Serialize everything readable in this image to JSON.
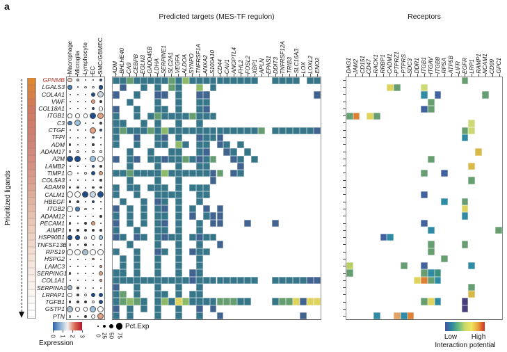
{
  "panel_label": "a",
  "titles": {
    "targets": "Predicted targets (MES-TF regulon)",
    "receptors": "Receptors"
  },
  "left_axis": {
    "label": "Prioritized ligands"
  },
  "ligands": [
    "GPNMB",
    "LGALS3",
    "COL4A1",
    "VWF",
    "COL18A1",
    "ITGB1",
    "C3",
    "CTGF",
    "TFPI",
    "ADM",
    "ADAM17",
    "A2M",
    "LAMB2",
    "TIMP1",
    "COL5A3",
    "ADAM9",
    "CALM1",
    "HBEGF",
    "ITGB2",
    "ADAM12",
    "PECAM1",
    "AIMP1",
    "HSP90B1",
    "TNFSF13B",
    "RPS19",
    "HSPG2",
    "LAMC3",
    "SERPING1",
    "COL1A1",
    "SERPINA1",
    "LRPAP1",
    "TGFB1",
    "GSTP1",
    "PTN"
  ],
  "ligand_highlight": {
    "gene": "GPNMB",
    "color": "#c0392b"
  },
  "ligand_bar": {
    "stops": [
      "#df862f",
      "#d1795f",
      "#d08175",
      "#d79384",
      "#e0b09d",
      "#ebcaba",
      "#f4e1d6",
      "#fbf2ec",
      "#ffffff"
    ]
  },
  "heat_palette": {
    ".": null,
    "t": "#377689",
    "T": "#40648f",
    "b": "#2f8ba3",
    "n": "#41629e",
    "m": "#3e8e7e",
    "g": "#669e72",
    "G": "#8cba68",
    "L": "#b9cf66",
    "l": "#cdd977",
    "Y": "#ddd35e",
    "y": "#d9b84a",
    "o": "#e2a364",
    "O": "#dd7f35",
    "r": "#cc2d21",
    "P": "#4a3f7d"
  },
  "dot_palette": {
    "k": "#3a3a3a",
    "w": "#ffffff",
    "n": "#1f4e8c",
    "b": "#4d7fb5",
    "l": "#9cc0d8",
    "p": "#c9d5e0",
    "s": "#e2a183",
    "P": "#eecdbd",
    "g": "#a9bdcb"
  },
  "legends": {
    "expression": {
      "label": "Expression",
      "ticks": [
        "0",
        "1",
        "2",
        "3"
      ],
      "gradient": [
        "#2d5fa8",
        "#88b0d2",
        "#f2f0ee",
        "#d96b52",
        "#b2182b"
      ]
    },
    "pct": {
      "label": "Pct.Exp",
      "ticks": [
        "0",
        "25",
        "50",
        "75"
      ]
    },
    "interaction": {
      "label": "Interaction potential",
      "low": "Low",
      "high": "High",
      "gradient": [
        "#4350a0",
        "#2d87a2",
        "#66b87f",
        "#c8d96a",
        "#f0e55c",
        "#eaa03c",
        "#cc2d21"
      ]
    }
  },
  "chart_data": [
    {
      "type": "scatter",
      "subtype": "dotplot",
      "title": "Ligand expression per cell type",
      "rows_ref": "ligands",
      "cols": [
        "Macrophage",
        "Microglia",
        "Lymphocyte",
        "EC",
        "SMC/GBMEC"
      ],
      "encoding": {
        "cell_format": "sizeDigit+colorChar",
        "size_pct": {
          "0": 0,
          "1": 25,
          "2": 50,
          "3": 75
        },
        "color_scale": "Expression 0-3, blue-white-red; see dot_palette"
      },
      "cells": [
        [
          "2P",
          "1g",
          "0k",
          "0k",
          "1n"
        ],
        [
          "2b",
          "0k",
          "1w",
          "1w",
          "2n"
        ],
        [
          "0k",
          "0k",
          "0k",
          "2n",
          "3p"
        ],
        [
          "0k",
          "0k",
          "0k",
          "2s",
          "1k"
        ],
        [
          "0k",
          "0k",
          "0k",
          "1n",
          "2w"
        ],
        [
          "2w",
          "2w",
          "2w",
          "3n",
          "3s"
        ],
        [
          "2b",
          "3l",
          "0k",
          "0k",
          "1k"
        ],
        [
          "0k",
          "0k",
          "0k",
          "3s",
          "1n"
        ],
        [
          "0k",
          "0k",
          "0k",
          "1n",
          "0k"
        ],
        [
          "1k",
          "0k",
          "0k",
          "1k",
          "0k"
        ],
        [
          "1w",
          "1w",
          "0k",
          "1w",
          "1w"
        ],
        [
          "3n",
          "3n",
          "0k",
          "3l",
          "3w"
        ],
        [
          "0k",
          "0k",
          "0k",
          "1n",
          "1k"
        ],
        [
          "2w",
          "0k",
          "1w",
          "2n",
          "2s"
        ],
        [
          "0k",
          "0k",
          "0k",
          "0k",
          "1k"
        ],
        [
          "1k",
          "1k",
          "0k",
          "1k",
          "1k"
        ],
        [
          "3w",
          "3w",
          "3n",
          "3p",
          "3n"
        ],
        [
          "1k",
          "1k",
          "0k",
          "1n",
          "0k"
        ],
        [
          "3w",
          "2b",
          "1w",
          "0k",
          "0k"
        ],
        [
          "0k",
          "0k",
          "0k",
          "0k",
          "1k"
        ],
        [
          "1k",
          "0k",
          "1k",
          "2s",
          "0k"
        ],
        [
          "1k",
          "1k",
          "1k",
          "1k",
          "1k"
        ],
        [
          "2n",
          "2n",
          "1w",
          "2w",
          "2l"
        ],
        [
          "1w",
          "0k",
          "1k",
          "0k",
          "0k"
        ],
        [
          "3w",
          "3w",
          "3g",
          "3w",
          "3w"
        ],
        [
          "0k",
          "0k",
          "0k",
          "1s",
          "0k"
        ],
        [
          "0k",
          "0k",
          "0k",
          "0k",
          "1s"
        ],
        [
          "1k",
          "0k",
          "0k",
          "0k",
          "2s"
        ],
        [
          "0k",
          "0k",
          "0k",
          "0k",
          "1s"
        ],
        [
          "2g",
          "1k",
          "0k",
          "0k",
          "0k"
        ],
        [
          "2w",
          "1k",
          "1w",
          "2n",
          "2n"
        ],
        [
          "1k",
          "1k",
          "1k",
          "1w",
          "2n"
        ],
        [
          "3g",
          "2w",
          "2w",
          "3l",
          "3w"
        ],
        [
          "1w",
          "0k",
          "1k",
          "2w",
          "3s"
        ]
      ]
    },
    {
      "type": "heatmap",
      "title": "Predicted targets (MES-TF regulon)",
      "rows_ref": "ligands",
      "cols": [
        "ADM",
        "BHLHE40",
        "CA9",
        "CEBPB",
        "EGLN3",
        "GADD45B",
        "LDHA",
        "SERPINE1",
        "SLC2A1",
        "VEGFA",
        "ALDOA",
        "SYNPO",
        "TNFRSF1A",
        "ANXA2",
        "S100A10",
        "CD44",
        "CAV1",
        "ANGPTL4",
        "FHL2",
        "FOSL2",
        "XBP1",
        "APLN",
        "EPAS1",
        "DDIT3",
        "TNFRSF12A",
        "TRIB3",
        "SLC16A3",
        "LOX",
        "LOXL2",
        "ENO2"
      ],
      "palette_ref": "heat_palette",
      "legend": "Interaction potential: Low (blue) to High (red); . = none",
      "cells": [
        "ttgtttttgtGtttttttttt..tttt.tt",
        ".T..t.t.gt..G.t...............",
        "T..t..TT.t..TT...............T",
        "..t...t..t..tt................",
        "T..t..tt.t..tT................",
        "t..t.tgttttgttt...............",
        "tt..t.t..t..t.................",
        "tgtttgtGtttttttttttttg.ttttttT",
        "t..T..tT.t..TttT..............",
        "t..t..tt.Gt.tt.Tt.t...........",
        "..t..t..tt..tT..Tt.t..........",
        "T.tT.ttTttgtTtg..Tt.t.........",
        "..t...t..t..tt....T...........",
        "ttgttttGttttttTg.Tt...........",
        "..t...t..t....T...............",
        "t.tt.ttt.t.ttt................",
        "t..t..tttt..tt................",
        ".t..t.Tt.t..t.................",
        "T.t.t.tT.t.t.T.T..............",
        "t.t.t.tt.t.T.tTT..............",
        "T.t.t.tT.t..t.TT...T...T......",
        "t..t..tt.t..t.................",
        "Tt.Tt.tTtt.tTtt...............",
        "..t...t..t..t..T..............",
        "t..t..Tt.t.Ttt................",
        ".t.t..t..t..t.................",
        ".t.t..t..t..t.................",
        "tt.t..t..t.Tt.................",
        "tttttttttttTttttttttt..tttttTT",
        "T..t..t..t..t.................",
        "tg.t..tt.t.tt.................",
        "tgGgt.tGtYGttttgggtt...tggYTYY",
        "T.t.t.t..t..T.T...............",
        "t.t...t..t..t..T...........T.."
      ]
    },
    {
      "type": "heatmap",
      "title": "Receptors",
      "rows_ref": "ligands",
      "cols": [
        "DAG1",
        "JAM2",
        "CD151",
        "CD47",
        "RACK1",
        "RRBP1",
        "CADM1",
        "PTPRZ1",
        "PTPRS",
        "SDC3",
        "DDR1",
        "ITGB1",
        "ITGAV",
        "ITGB8",
        "RPSA",
        "ATP5B",
        "LIFR",
        "EGFR",
        "LRP1",
        "RAMP1",
        "NCAM1",
        "CD99",
        "GPC1"
      ],
      "palette_ref": "heat_palette",
      "legend": "Interaction potential: Low (blue) to High (red); . = none",
      "cells": [
        ".................g.....",
        "......Yg...l...........",
        "...........b.n......g..",
        "............g..........",
        "...........ng..........",
        "gO.Yg..................",
        "..................l....",
        ".................gl....",
        ".................b.....",
        ".......................",
        "...................y...",
        "............g..........",
        "..................y....",
        "...........g..n........",
        "..................g....",
        ".......................",
        "...........n...........",
        "..............b..g.....",
        ".................Y.....",
        ".................b.....",
        "...........n...........",
        "............b.........g",
        ".....nb................",
        "............g....g.....",
        "............g..........",
        "..............g........",
        "L.......g..n......b....",
        "g..........gbm.........",
        "..........YOgb.........",
        "..................g....",
        "..................y....",
        "...........gYb...P.....",
        ".................P.....",
        "....b..obO............."
      ]
    }
  ]
}
